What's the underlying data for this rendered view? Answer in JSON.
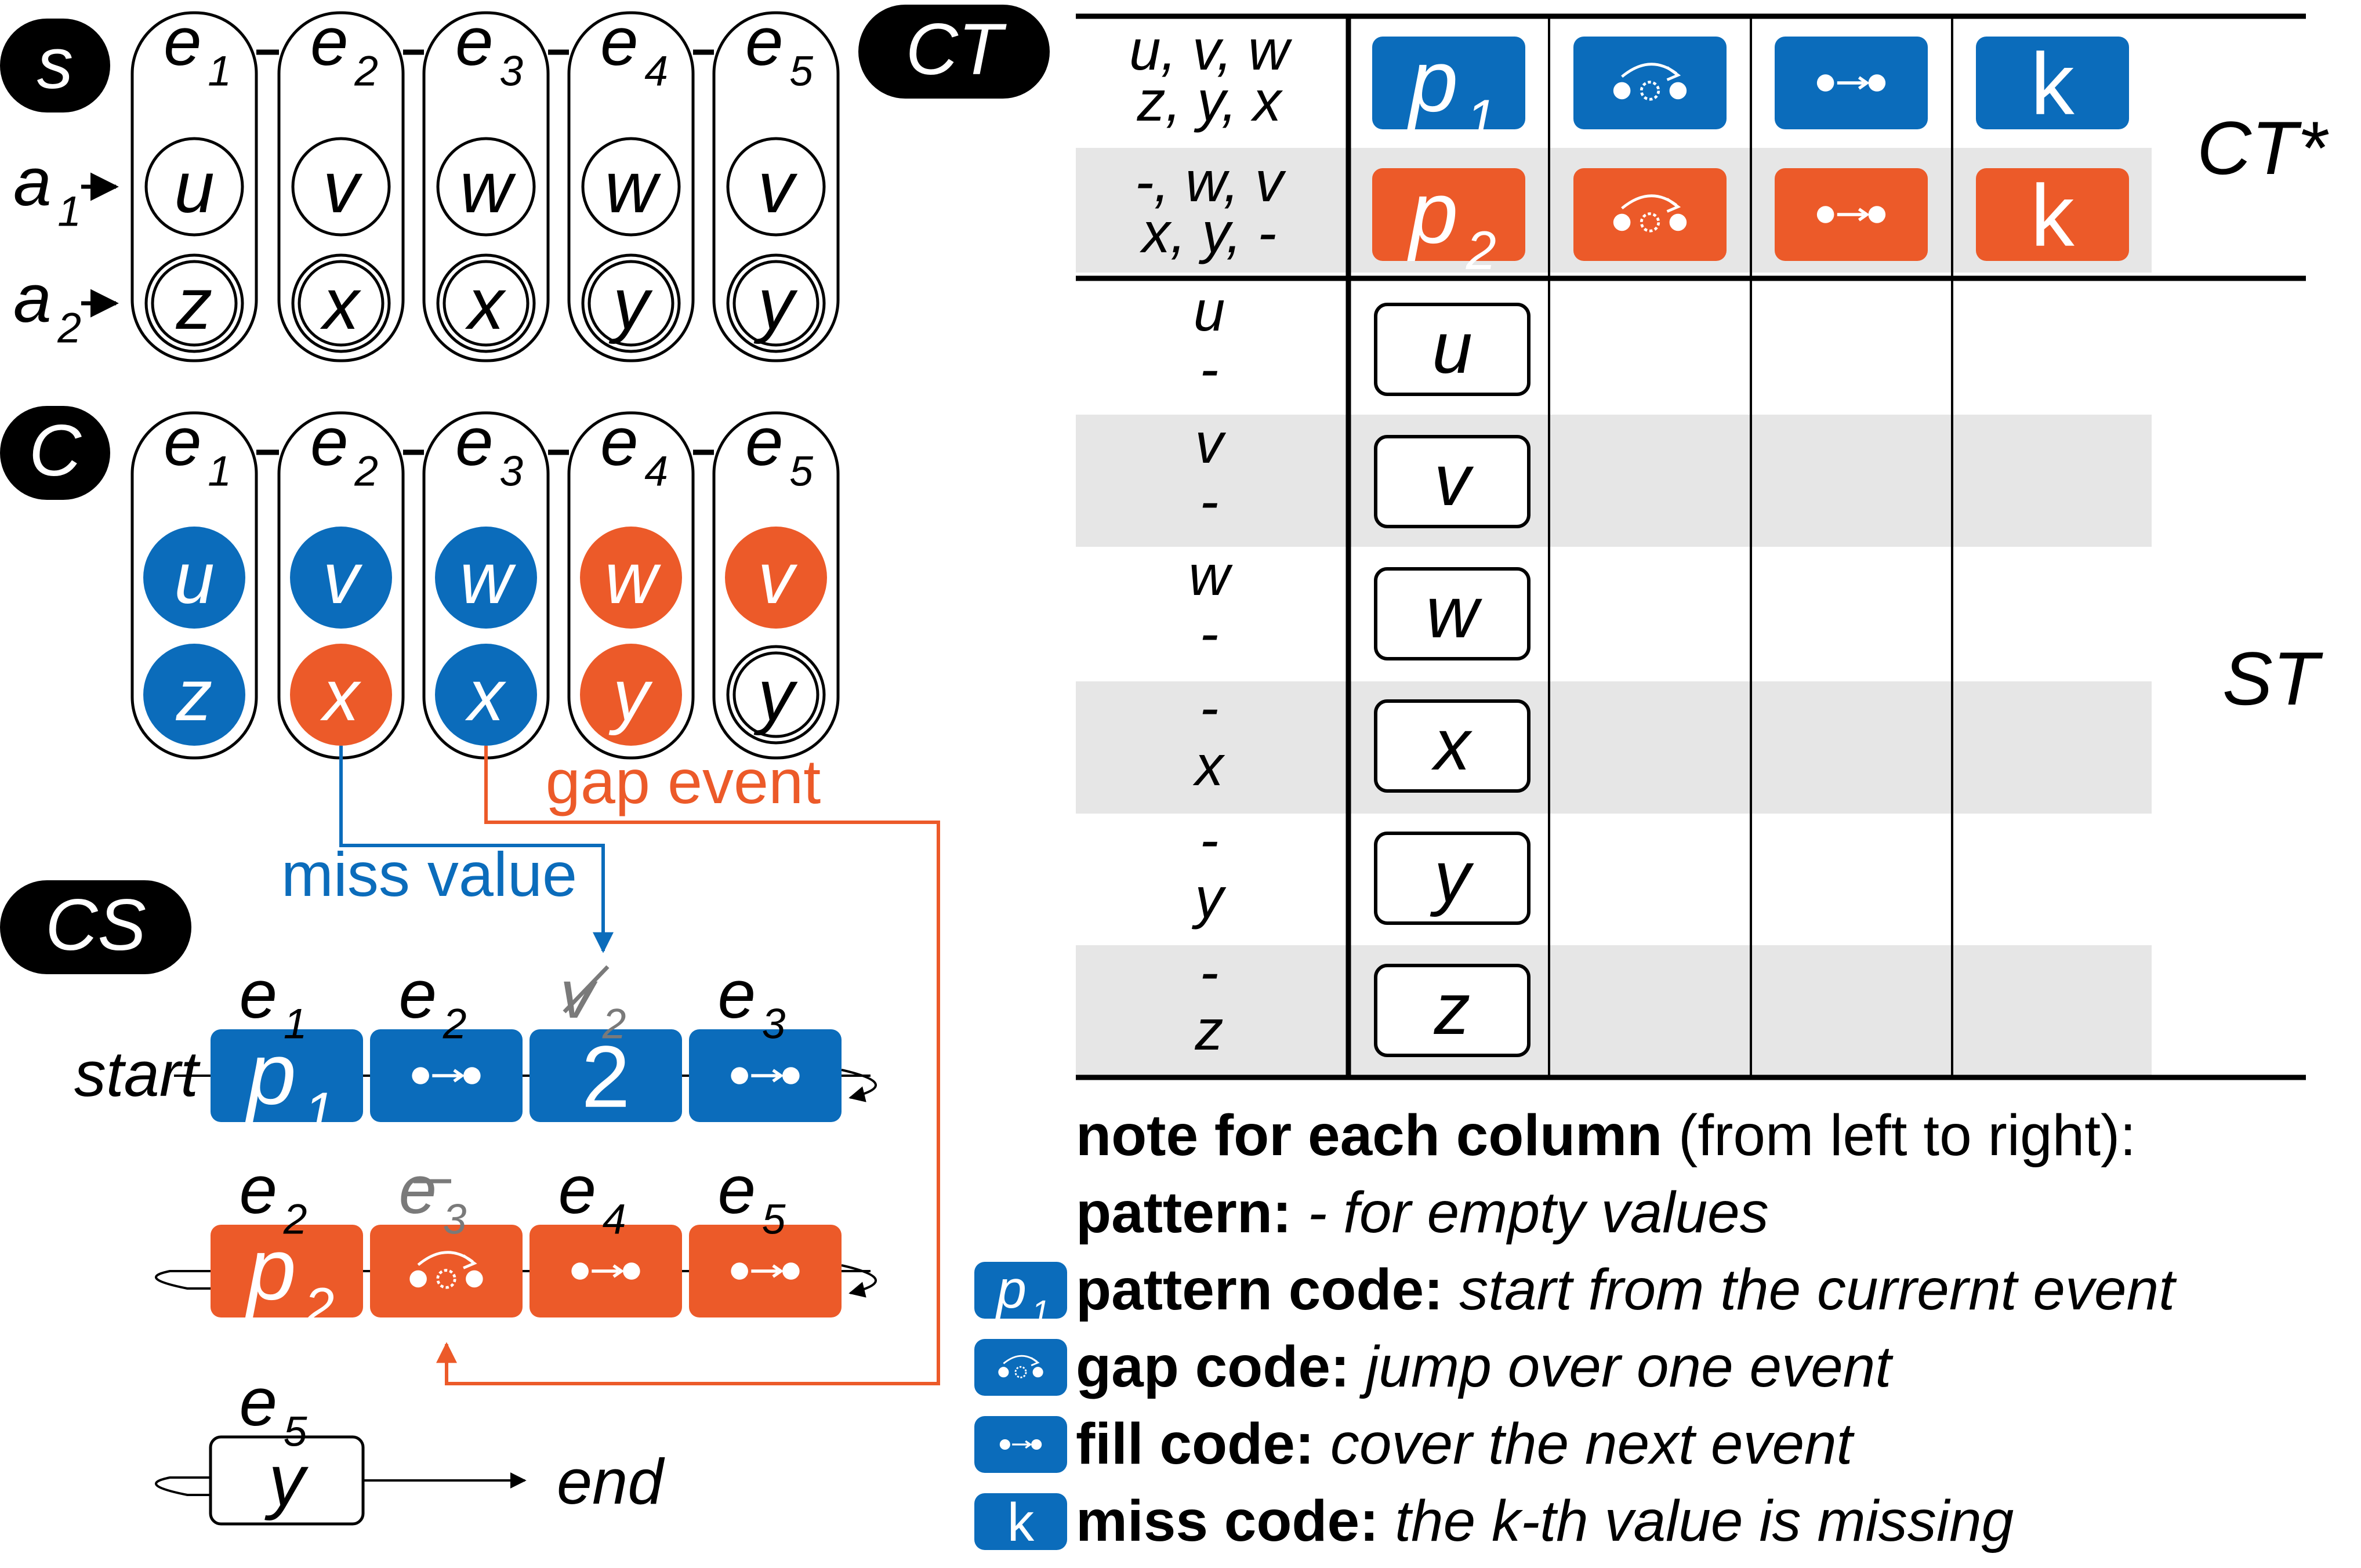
{
  "colors": {
    "blue": "#0b6cbb",
    "orange": "#ec5a29",
    "black": "#000000",
    "gray": "#7a7a7a",
    "band": "#e6e6e6"
  },
  "labels": {
    "s": "s",
    "c": "C",
    "cs": "CS",
    "ct": "CT",
    "ct_star": "CT*",
    "st": "ST",
    "a1": "a",
    "a1_sub": "1",
    "a2": "a",
    "a2_sub": "2",
    "start": "start",
    "end": "end",
    "miss_value": "miss value",
    "gap_event": "gap event"
  },
  "events": [
    {
      "letter": "e",
      "sub": "1"
    },
    {
      "letter": "e",
      "sub": "2"
    },
    {
      "letter": "e",
      "sub": "3"
    },
    {
      "letter": "e",
      "sub": "4"
    },
    {
      "letter": "e",
      "sub": "5"
    }
  ],
  "s_values": {
    "row1": [
      "u",
      "v",
      "w",
      "w",
      "v"
    ],
    "row2": [
      "z",
      "x",
      "x",
      "y",
      "y"
    ]
  },
  "c_values": {
    "row1": [
      {
        "v": "u",
        "color": "blue"
      },
      {
        "v": "v",
        "color": "blue"
      },
      {
        "v": "w",
        "color": "blue"
      },
      {
        "v": "w",
        "color": "orange"
      },
      {
        "v": "v",
        "color": "orange"
      }
    ],
    "row2": [
      {
        "v": "z",
        "color": "blue"
      },
      {
        "v": "x",
        "color": "orange"
      },
      {
        "v": "x",
        "color": "blue"
      },
      {
        "v": "y",
        "color": "orange"
      },
      {
        "v": "y",
        "color": "none"
      }
    ]
  },
  "cs": {
    "row1": {
      "labels": [
        {
          "letter": "e",
          "sub": "1"
        },
        {
          "letter": "e",
          "sub": "2"
        },
        {
          "letter": "v",
          "sub": "2",
          "struck": true
        },
        {
          "letter": "e",
          "sub": "3"
        }
      ],
      "boxes": [
        {
          "kind": "pattern",
          "text": "p",
          "sub": "1"
        },
        {
          "kind": "fill"
        },
        {
          "kind": "miss",
          "text": "2"
        },
        {
          "kind": "fill"
        }
      ]
    },
    "row2": {
      "labels": [
        {
          "letter": "e",
          "sub": "2"
        },
        {
          "letter": "e",
          "sub": "3",
          "struck": true
        },
        {
          "letter": "e",
          "sub": "4"
        },
        {
          "letter": "e",
          "sub": "5"
        }
      ],
      "boxes": [
        {
          "kind": "pattern",
          "text": "p",
          "sub": "2"
        },
        {
          "kind": "gap"
        },
        {
          "kind": "fill"
        },
        {
          "kind": "fill"
        }
      ]
    },
    "row3": {
      "label": {
        "letter": "e",
        "sub": "5"
      },
      "box": "y"
    }
  },
  "table": {
    "ct_rows": [
      {
        "line1": "u, v, w",
        "line2": "z, y, x",
        "color": "blue",
        "pattern": "p",
        "pattern_sub": "1",
        "miss": "k"
      },
      {
        "line1": "-, w, v",
        "line2": "x, y, -",
        "color": "orange",
        "pattern": "p",
        "pattern_sub": "2",
        "miss": "k"
      }
    ],
    "st_rows": [
      {
        "line1": "u",
        "line2": "-",
        "box": "u"
      },
      {
        "line1": "v",
        "line2": "-",
        "box": "v"
      },
      {
        "line1": "w",
        "line2": "-",
        "box": "w"
      },
      {
        "line1": "-",
        "line2": "x",
        "box": "x"
      },
      {
        "line1": "-",
        "line2": "y",
        "box": "y"
      },
      {
        "line1": "-",
        "line2": "z",
        "box": "z"
      }
    ]
  },
  "notes": {
    "header_bold": "note for each column",
    "header_rest": " (from left to right):",
    "items": [
      {
        "icon": "none",
        "bold": "pattern: ",
        "italic": "- for empty values"
      },
      {
        "icon": "pattern",
        "icon_text": "p",
        "icon_sub": "1",
        "bold": "pattern code: ",
        "italic": "start from the currernt event"
      },
      {
        "icon": "gap",
        "bold": "gap code: ",
        "italic": "jump over one event"
      },
      {
        "icon": "fill",
        "bold": "fill code: ",
        "italic": "cover the next event"
      },
      {
        "icon": "miss",
        "icon_text": "k",
        "bold": "miss code: ",
        "italic": "the k-th value is missing"
      }
    ]
  }
}
